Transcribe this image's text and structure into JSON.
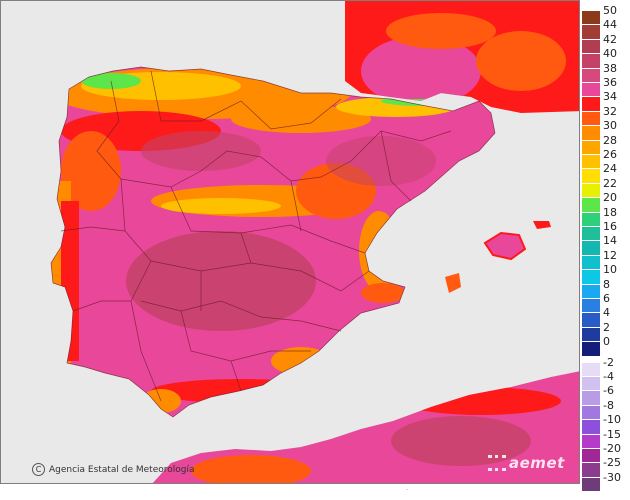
{
  "credit": {
    "text": "Agencia Estatal de Meteorología",
    "icon": "copyright-icon"
  },
  "logo": {
    "text": "aemet"
  },
  "legend": {
    "items": [
      {
        "label": "50",
        "color": "#8b3a1a"
      },
      {
        "label": "44",
        "color": "#a13c36"
      },
      {
        "label": "42",
        "color": "#b23d52"
      },
      {
        "label": "40",
        "color": "#c44267"
      },
      {
        "label": "38",
        "color": "#d5497c"
      },
      {
        "label": "36",
        "color": "#e8479a"
      },
      {
        "label": "34",
        "color": "#ff1a1a"
      },
      {
        "label": "32",
        "color": "#ff5a10"
      },
      {
        "label": "30",
        "color": "#ff8c00"
      },
      {
        "label": "28",
        "color": "#ffa500"
      },
      {
        "label": "26",
        "color": "#ffc000"
      },
      {
        "label": "24",
        "color": "#ffde00"
      },
      {
        "label": "22",
        "color": "#e6f000"
      },
      {
        "label": "20",
        "color": "#5ce64a"
      },
      {
        "label": "18",
        "color": "#2ed07a"
      },
      {
        "label": "16",
        "color": "#1fbf9a"
      },
      {
        "label": "14",
        "color": "#14b8b0"
      },
      {
        "label": "12",
        "color": "#10c0cc"
      },
      {
        "label": "10",
        "color": "#0cc8e6"
      },
      {
        "label": "8",
        "color": "#1aa8f0"
      },
      {
        "label": "6",
        "color": "#2a80e0"
      },
      {
        "label": "4",
        "color": "#2a5cc8"
      },
      {
        "label": "2",
        "color": "#1e3ca0"
      },
      {
        "label": "0",
        "color": "#141e78"
      },
      {
        "label": "-2",
        "color": "#e6dcf5"
      },
      {
        "label": "-4",
        "color": "#d2c0f0"
      },
      {
        "label": "-6",
        "color": "#b99ce6"
      },
      {
        "label": "-8",
        "color": "#a078e0"
      },
      {
        "label": "-10",
        "color": "#8c50dc"
      },
      {
        "label": "-15",
        "color": "#b43cc8"
      },
      {
        "label": "-20",
        "color": "#a02896"
      },
      {
        "label": "-25",
        "color": "#8c3c8c"
      },
      {
        "label": "-30",
        "color": "#6e3c78"
      }
    ]
  },
  "map_colors": {
    "sea": "#e9e9e9",
    "land_base": "#e8479a",
    "land_dark": "#c44267",
    "hot": "#ff1a1a",
    "warm": "#ff8c00",
    "mild": "#ffc000",
    "cool": "#5ce64a",
    "borders": "#6b1a2a"
  }
}
